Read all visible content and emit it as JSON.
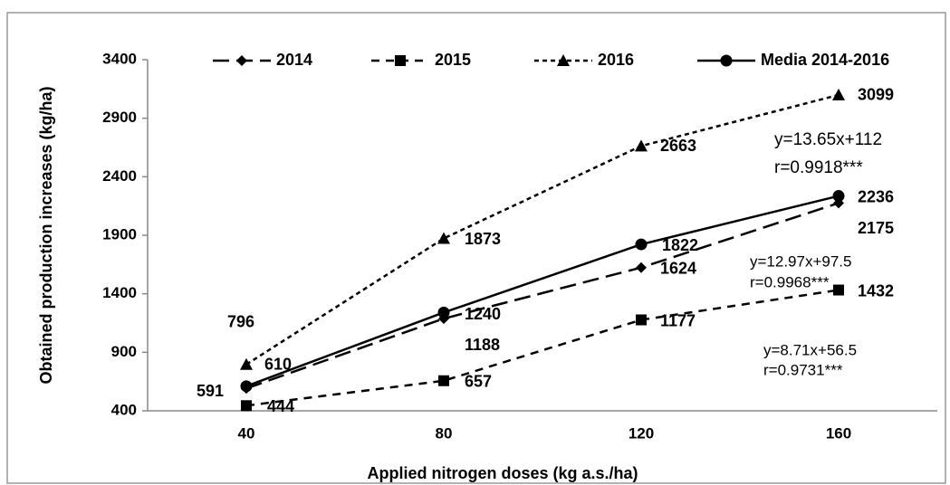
{
  "chart_data": {
    "type": "line",
    "x_label": "Applied nitrogen doses (kg a.s./ha)",
    "y_label": "Obtained production increases (kg/ha)",
    "x": [
      40,
      80,
      120,
      160
    ],
    "xlim": [
      20,
      180
    ],
    "xticks": [
      40,
      80,
      120,
      160
    ],
    "ylim": [
      400,
      3400
    ],
    "yticks": [
      400,
      900,
      1400,
      1900,
      2400,
      2900,
      3400
    ],
    "legend": "top",
    "series": [
      {
        "name": "2014",
        "color": "#000000",
        "marker": "diamond",
        "dash": "18 8",
        "values": [
          591,
          1188,
          1624,
          2175
        ]
      },
      {
        "name": "2015",
        "color": "#000000",
        "marker": "square",
        "dash": "9 7",
        "values": [
          444,
          657,
          1177,
          1432
        ]
      },
      {
        "name": "2016",
        "color": "#000000",
        "marker": "triangle",
        "dash": "5 4",
        "values": [
          796,
          1873,
          2663,
          3099
        ]
      },
      {
        "name": "Media 2014-2016",
        "color": "#000000",
        "marker": "circle",
        "dash": "none",
        "values": [
          610,
          1240,
          1822,
          2236
        ]
      }
    ],
    "annotations": [
      [
        "y=13.65x+112",
        "r=0.9918***"
      ],
      [
        "y=12.97x+97.5",
        "r=0.9968***"
      ],
      [
        "y=8.71x+56.5",
        "r=0.9731***"
      ]
    ]
  }
}
